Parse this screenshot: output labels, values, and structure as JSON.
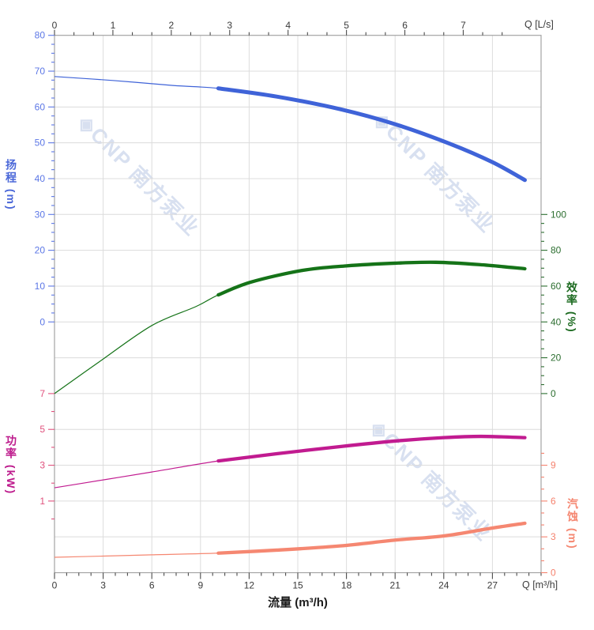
{
  "watermark": {
    "text": "◈CNP 南方泵业",
    "color": "#d8e0f0"
  },
  "labels": {
    "top_axis_end": "Q [L/s]",
    "bottom_axis_end": "Q [m³/h]",
    "bottom_axis_title": "流量 (m³/h)",
    "head_axis_title": "扬程 (m)",
    "power_axis_title": "功率 (kW)",
    "efficiency_axis_title": "效率 (%)",
    "npsh_axis_title": "汽蚀 (m)"
  },
  "chart_data": {
    "type": "line",
    "title": "",
    "grid": true,
    "x_axis_bottom": {
      "title": "流量 (m³/h)",
      "end_label": "Q [m³/h]",
      "range": [
        0,
        30
      ],
      "major_ticks": [
        0,
        3,
        6,
        9,
        12,
        15,
        18,
        21,
        24,
        27
      ],
      "minor_step": 0.75,
      "minor_max": 30,
      "label_color": "#3a3a3a",
      "tick_color": "#4a4a4a"
    },
    "x_axis_top": {
      "end_label": "Q [L/s]",
      "range": [
        0,
        8.333
      ],
      "major_ticks": [
        0,
        1,
        2,
        3,
        4,
        5,
        6,
        7
      ],
      "minor_step": 0.3333,
      "minor_max": 7.7,
      "label_color": "#3a3a3a",
      "tick_color": "#4a4a4a"
    },
    "y_axes": {
      "head": {
        "title": "扬程 (m)",
        "side": "left",
        "unit": "m",
        "ref_value": 0,
        "ref_row": 8,
        "units_per_row": 10,
        "major_ticks": [
          80,
          70,
          60,
          50,
          40,
          30,
          20,
          10,
          0
        ],
        "minor_step": 2.5,
        "minor_min": 0,
        "minor_max": 80,
        "label_color": "#5c77e6",
        "tick_color": "#5c77e6",
        "title_color": "#4a67d8"
      },
      "power": {
        "title": "功率 (kW)",
        "side": "left",
        "unit": "kW",
        "ref_value": 1,
        "ref_row": 13,
        "units_per_row": 2,
        "major_ticks": [
          7,
          5,
          3,
          1
        ],
        "minor_step": 1,
        "minor_min": 0,
        "minor_max": 7,
        "label_color": "#e0517d",
        "tick_color": "#e0517d",
        "title_color": "#bd1a8c"
      },
      "efficiency": {
        "title": "效率 (%)",
        "side": "right",
        "unit": "%",
        "ref_value": 0,
        "ref_row": 10,
        "units_per_row": 20,
        "major_ticks": [
          100,
          80,
          60,
          40,
          20,
          0
        ],
        "minor_step": 5,
        "minor_min": 0,
        "minor_max": 100,
        "label_color": "#2c6e30",
        "tick_color": "#2c6e30",
        "title_color": "#1d6b21"
      },
      "npsh": {
        "title": "汽蚀 (m)",
        "side": "right",
        "unit": "m",
        "ref_value": 0,
        "ref_row": 15,
        "units_per_row": 3,
        "major_ticks": [
          9,
          6,
          3,
          0
        ],
        "minor_step": 1,
        "minor_min": 0,
        "minor_max": 10,
        "label_color": "#f5826e",
        "tick_color": "#f5826e",
        "title_color": "#f58771"
      }
    },
    "series": [
      {
        "name": "head-curve",
        "axis": "head",
        "color": "#3f63d8",
        "thick_range": [
          10.1,
          29
        ],
        "points": [
          [
            0,
            68.5
          ],
          [
            3.6,
            67.4
          ],
          [
            7.3,
            66.0
          ],
          [
            10.1,
            65.2
          ],
          [
            13.7,
            62.9
          ],
          [
            17.6,
            59.4
          ],
          [
            21,
            55.2
          ],
          [
            24.4,
            49.7
          ],
          [
            27,
            44.6
          ],
          [
            29,
            39.6
          ]
        ]
      },
      {
        "name": "efficiency-curve",
        "axis": "efficiency",
        "color": "#157318",
        "thick_range": [
          10.1,
          29
        ],
        "points": [
          [
            0,
            0
          ],
          [
            2.8,
            18
          ],
          [
            6,
            38
          ],
          [
            8.7,
            48.5
          ],
          [
            10.1,
            55.1
          ],
          [
            12.1,
            62.2
          ],
          [
            15.3,
            68.8
          ],
          [
            18,
            71.3
          ],
          [
            21,
            72.8
          ],
          [
            23.5,
            73.3
          ],
          [
            26.2,
            72.0
          ],
          [
            29,
            69.7
          ]
        ]
      },
      {
        "name": "power-curve",
        "axis": "power",
        "color": "#c11b90",
        "thick_range": [
          10.1,
          29
        ],
        "points": [
          [
            0,
            1.74
          ],
          [
            3,
            2.18
          ],
          [
            6,
            2.62
          ],
          [
            10.1,
            3.24
          ],
          [
            13.7,
            3.64
          ],
          [
            17.6,
            4.04
          ],
          [
            21,
            4.35
          ],
          [
            24,
            4.54
          ],
          [
            26.3,
            4.61
          ],
          [
            29,
            4.54
          ]
        ]
      },
      {
        "name": "npsh-curve",
        "axis": "npsh",
        "color": "#f58771",
        "thick_range": [
          10.1,
          29
        ],
        "points": [
          [
            0,
            1.29
          ],
          [
            3,
            1.39
          ],
          [
            6,
            1.5
          ],
          [
            10.1,
            1.64
          ],
          [
            13.7,
            1.89
          ],
          [
            17.6,
            2.24
          ],
          [
            21,
            2.73
          ],
          [
            24,
            3.08
          ],
          [
            27,
            3.74
          ],
          [
            29,
            4.14
          ]
        ]
      }
    ],
    "frame_color": "#a3a3a3",
    "grid_color": "#dcdcdc"
  }
}
